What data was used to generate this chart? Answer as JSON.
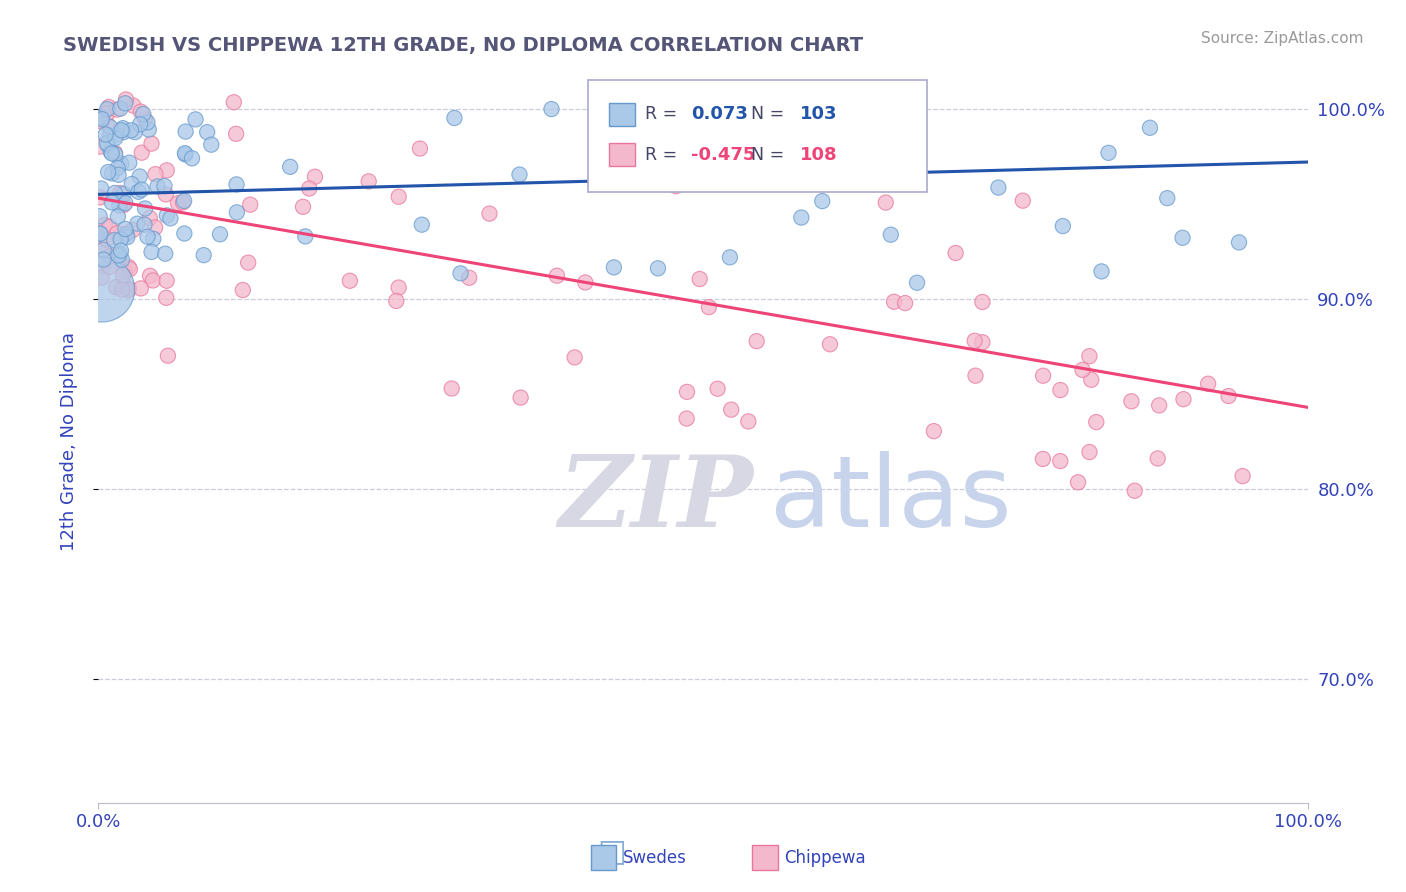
{
  "title": "SWEDISH VS CHIPPEWA 12TH GRADE, NO DIPLOMA CORRELATION CHART",
  "source": "Source: ZipAtlas.com",
  "ylabel": "12th Grade, No Diploma",
  "watermark_zip": "ZIP",
  "watermark_atlas": "atlas",
  "xlim": [
    0.0,
    1.0
  ],
  "ylim": [
    0.635,
    1.015
  ],
  "yticks": [
    0.7,
    0.8,
    0.9,
    1.0
  ],
  "ytick_labels": [
    "70.0%",
    "80.0%",
    "90.0%",
    "100.0%"
  ],
  "blue_color": "#aac8e8",
  "pink_color": "#f4b8cc",
  "blue_edge": "#6699cc",
  "pink_edge": "#e87799",
  "title_color": "#555577",
  "axis_color": "#3344bb",
  "grid_color": "#ccccdd",
  "blue_trend_color": "#2255aa",
  "pink_trend_color": "#ee4477",
  "blue_trend_y0": 0.955,
  "blue_trend_y1": 0.972,
  "pink_trend_y0": 0.953,
  "pink_trend_y1": 0.843,
  "legend_blue_r": "0.073",
  "legend_blue_n": "103",
  "legend_pink_r": "-0.475",
  "legend_pink_n": "108"
}
